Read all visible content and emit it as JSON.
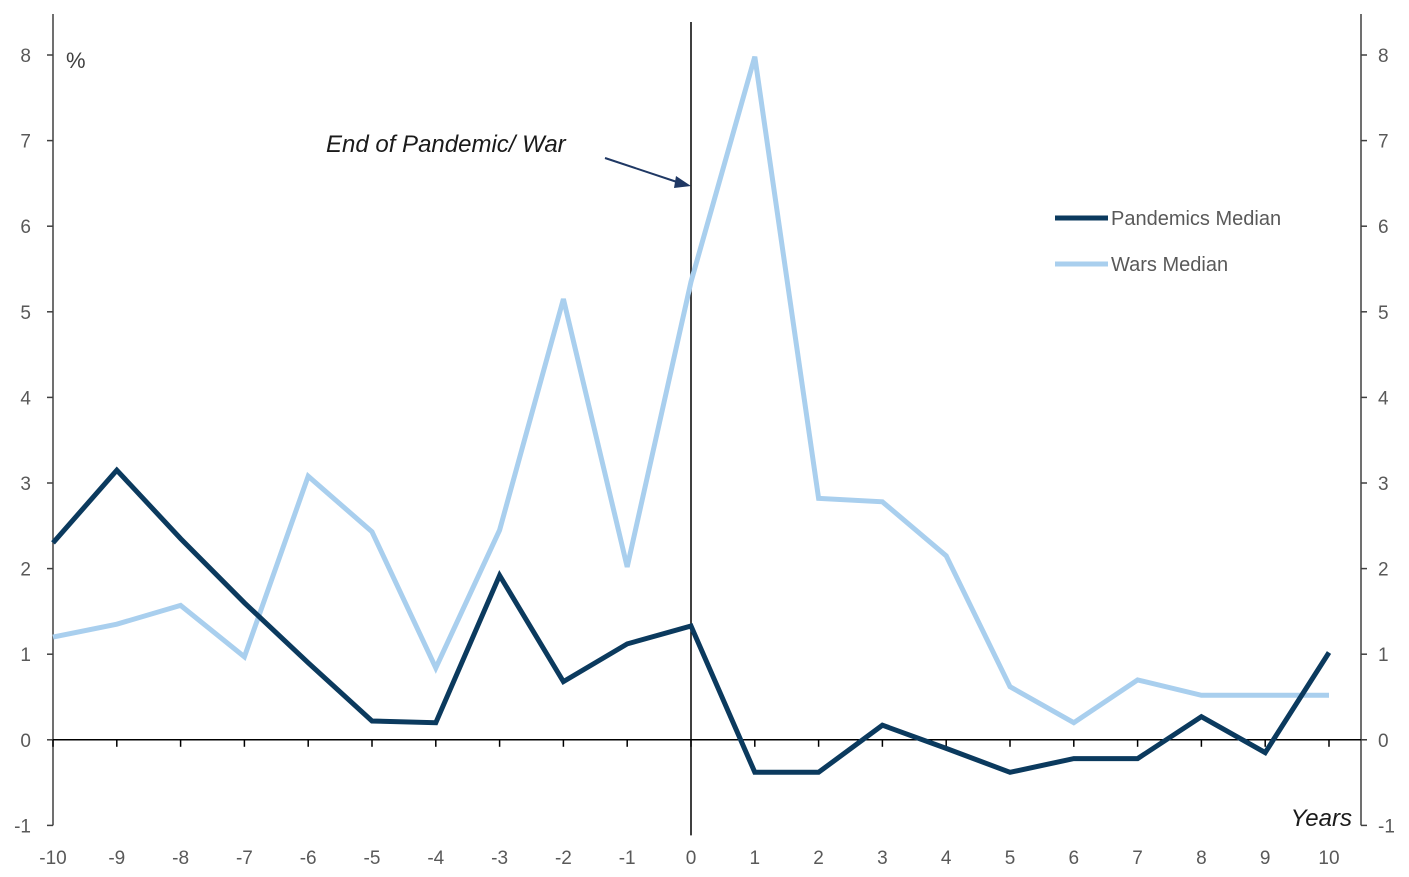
{
  "chart_data": {
    "type": "line",
    "x": [
      -10,
      -9,
      -8,
      -7,
      -6,
      -5,
      -4,
      -3,
      -2,
      -1,
      0,
      1,
      2,
      3,
      4,
      5,
      6,
      7,
      8,
      9,
      10
    ],
    "xlabel": "Years",
    "ylabel": "%",
    "ylim": [
      -1,
      8
    ],
    "yticks": [
      -1,
      0,
      1,
      2,
      3,
      4,
      5,
      6,
      7,
      8
    ],
    "secondary_y_axis": true,
    "grid": false,
    "legend_position": "top-right",
    "annotation": "End of Pandemic/ War",
    "series": [
      {
        "name": "Pandemics Median",
        "color": "#0b3a5e",
        "values": [
          2.3,
          3.15,
          2.35,
          1.6,
          0.9,
          0.22,
          0.2,
          1.92,
          0.68,
          1.12,
          1.33,
          -0.38,
          -0.38,
          0.17,
          -0.1,
          -0.38,
          -0.22,
          -0.22,
          0.27,
          -0.15,
          1.02
        ]
      },
      {
        "name": "Wars Median",
        "color": "#a9cfee",
        "values": [
          1.2,
          1.35,
          1.57,
          0.97,
          3.08,
          2.43,
          0.84,
          2.45,
          5.15,
          2.02,
          5.35,
          7.98,
          2.82,
          2.78,
          2.15,
          0.62,
          0.2,
          0.7,
          0.52,
          0.52,
          0.52
        ]
      }
    ]
  }
}
